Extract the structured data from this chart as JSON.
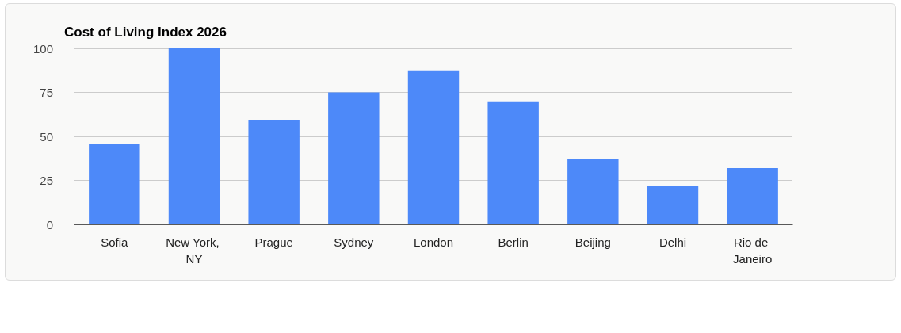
{
  "chart_data": {
    "type": "bar",
    "title": "Cost of Living Index 2026",
    "categories": [
      "Sofia",
      "New York, NY",
      "Prague",
      "Sydney",
      "London",
      "Berlin",
      "Beijing",
      "Delhi",
      "Rio de Janeiro"
    ],
    "values": [
      46,
      100,
      59.5,
      75,
      87.5,
      69.5,
      37,
      22,
      32
    ],
    "color": "#4d89f9",
    "ylim": [
      0,
      100
    ],
    "yticks": [
      0,
      25,
      50,
      75,
      100
    ],
    "grid": "y"
  }
}
